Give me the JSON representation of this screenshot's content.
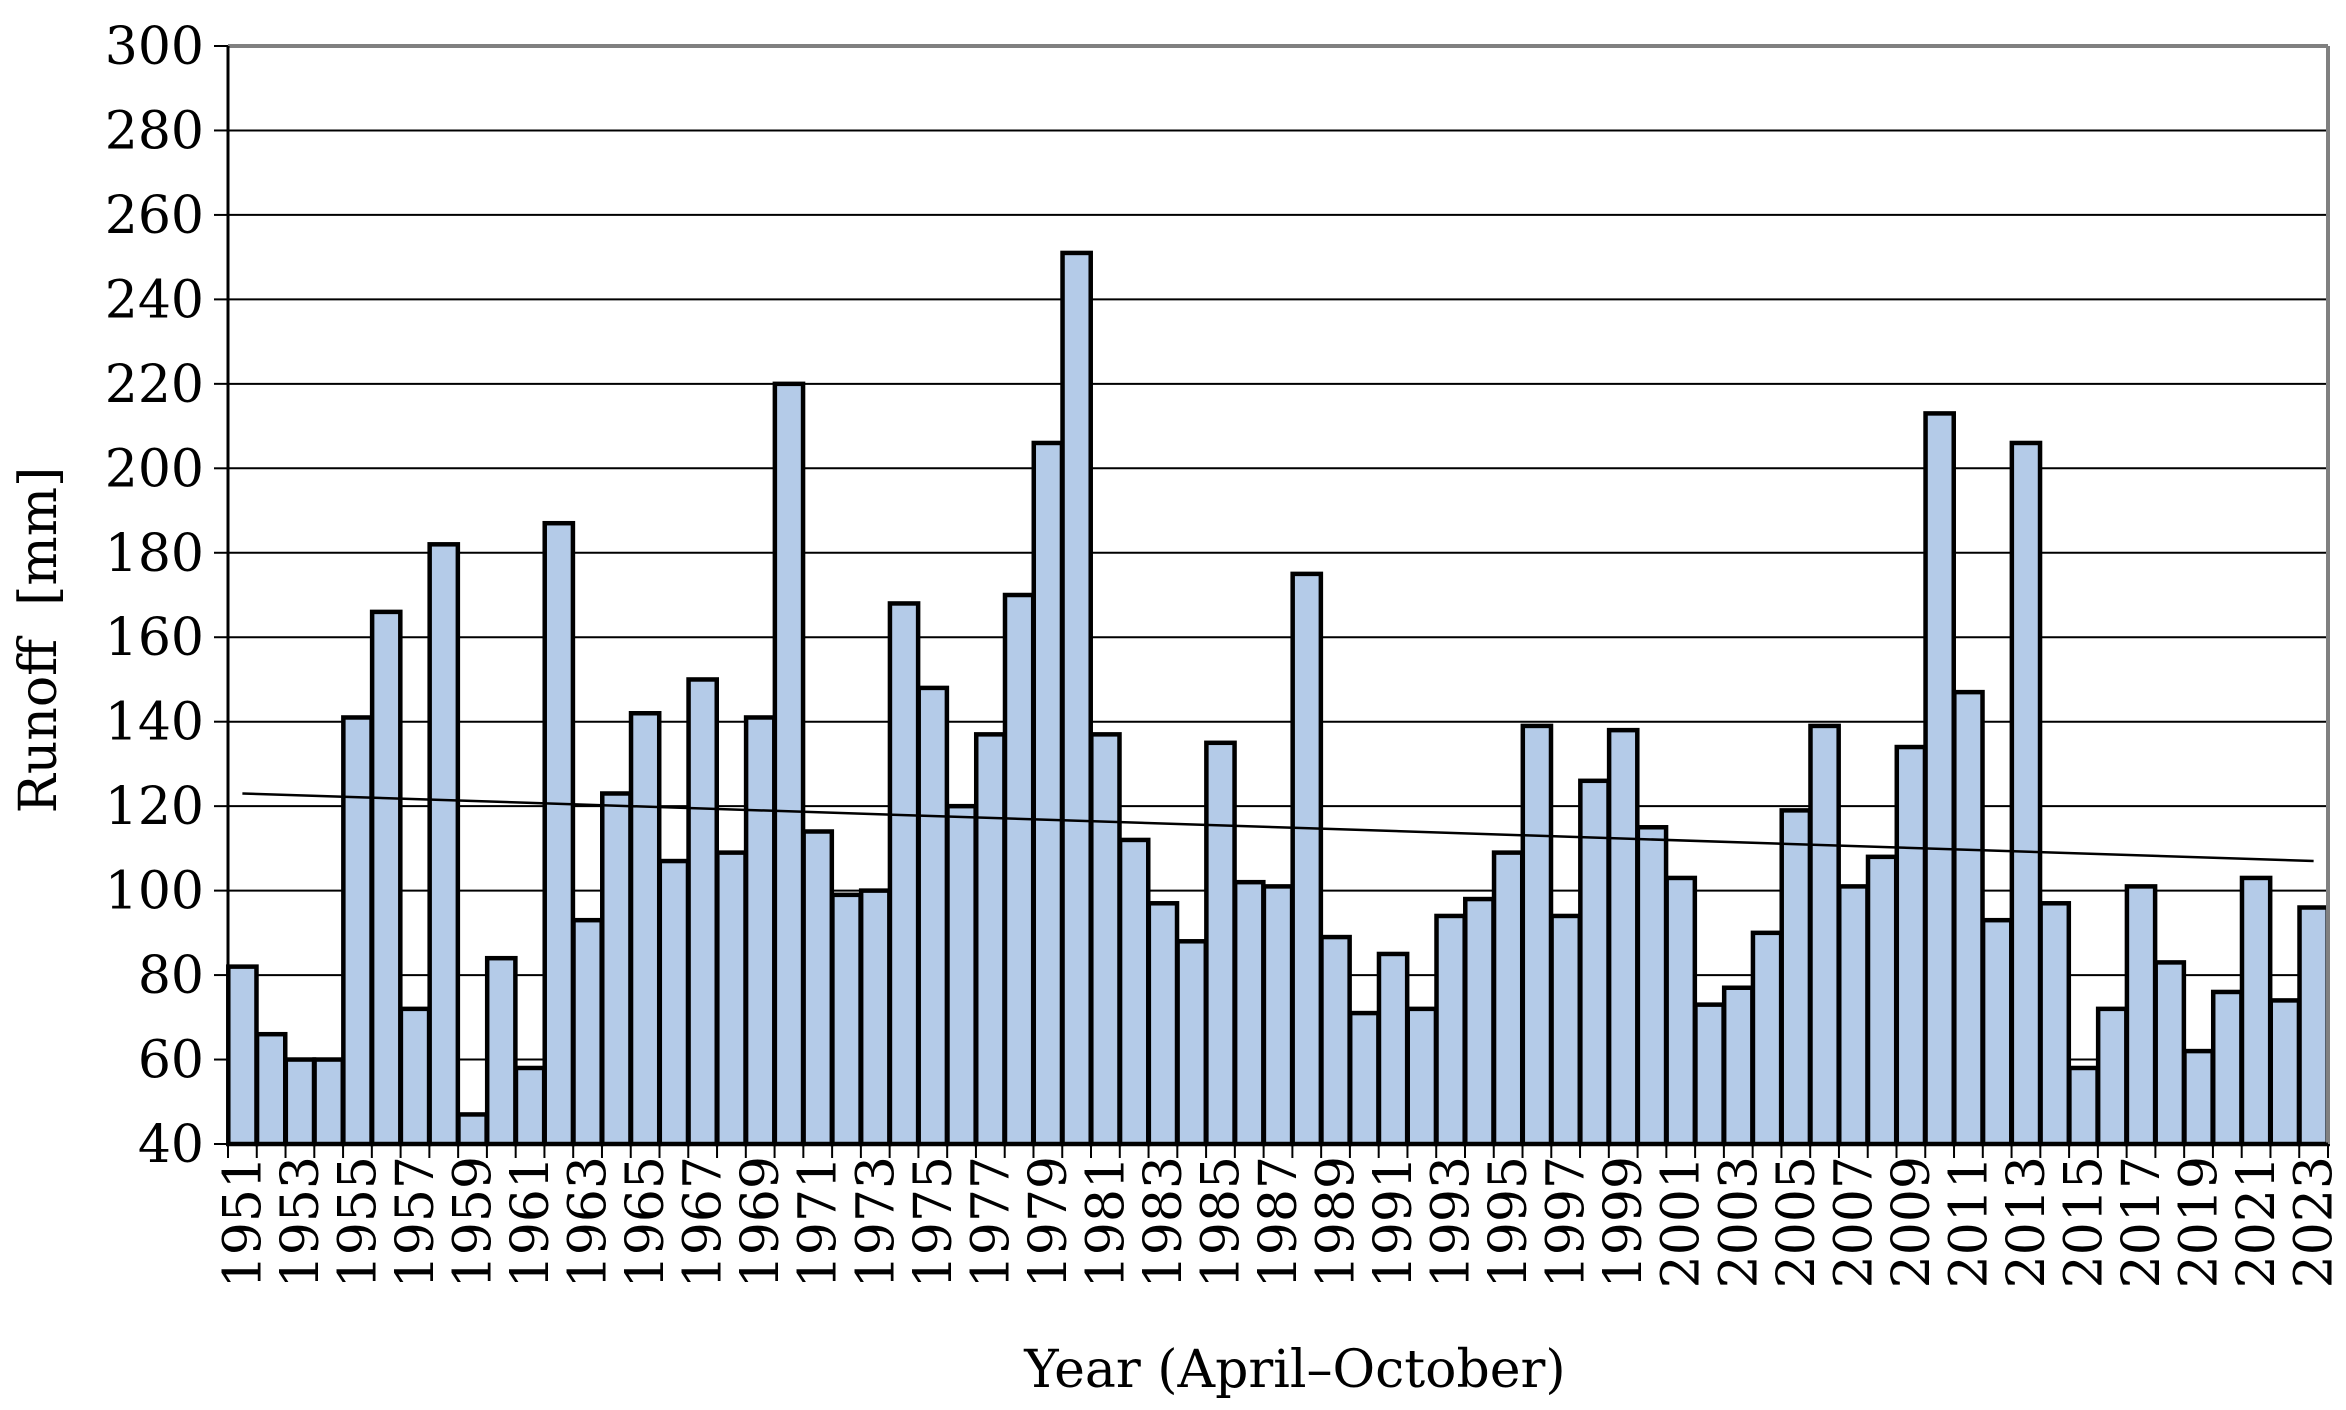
{
  "chart_data": {
    "type": "bar",
    "title": "",
    "xlabel": "Year (April–October)",
    "ylabel": "Runoff  [mm]",
    "ylim": [
      40,
      300
    ],
    "yticks": [
      40,
      60,
      80,
      100,
      120,
      140,
      160,
      180,
      200,
      220,
      240,
      260,
      280,
      300
    ],
    "grid": true,
    "legend": "none",
    "x_tick_labels_shown": [
      "1951",
      "1953",
      "1955",
      "1957",
      "1959",
      "1961",
      "1963",
      "1965",
      "1967",
      "1969",
      "1971",
      "1973",
      "1975",
      "1977",
      "1979",
      "1981",
      "1983",
      "1985",
      "1987",
      "1989",
      "1991",
      "1993",
      "1995",
      "1997",
      "1999",
      "2001",
      "2003",
      "2005",
      "2007",
      "2009",
      "2011",
      "2013",
      "2015",
      "2017",
      "2019",
      "2021",
      "2023"
    ],
    "categories": [
      "1951",
      "1952",
      "1953",
      "1954",
      "1955",
      "1956",
      "1957",
      "1958",
      "1959",
      "1960",
      "1961",
      "1962",
      "1963",
      "1964",
      "1965",
      "1966",
      "1967",
      "1968",
      "1969",
      "1970",
      "1971",
      "1972",
      "1973",
      "1974",
      "1975",
      "1976",
      "1977",
      "1978",
      "1979",
      "1980",
      "1981",
      "1982",
      "1983",
      "1984",
      "1985",
      "1986",
      "1987",
      "1988",
      "1989",
      "1990",
      "1991",
      "1992",
      "1993",
      "1994",
      "1995",
      "1996",
      "1997",
      "1998",
      "1999",
      "2000",
      "2001",
      "2002",
      "2003",
      "2004",
      "2005",
      "2006",
      "2007",
      "2008",
      "2009",
      "2010",
      "2011",
      "2012",
      "2013",
      "2014",
      "2015",
      "2016",
      "2017",
      "2018",
      "2019",
      "2020",
      "2021",
      "2022",
      "2023"
    ],
    "values": [
      82,
      66,
      60,
      60,
      141,
      166,
      72,
      182,
      47,
      84,
      58,
      187,
      93,
      123,
      142,
      107,
      150,
      109,
      141,
      220,
      114,
      99,
      100,
      168,
      148,
      120,
      137,
      170,
      206,
      251,
      137,
      112,
      97,
      88,
      135,
      102,
      101,
      175,
      89,
      71,
      85,
      72,
      94,
      98,
      109,
      139,
      94,
      126,
      138,
      115,
      103,
      73,
      77,
      90,
      119,
      139,
      101,
      108,
      134,
      213,
      147,
      93,
      206,
      97,
      58,
      72,
      101,
      83,
      62,
      76,
      103,
      74,
      96
    ],
    "trendline": {
      "type": "linear",
      "start": 123,
      "end": 107
    },
    "colors": {
      "bar_fill": "#b4cbe8",
      "bar_stroke": "#000000",
      "gridline": "#000000",
      "trendline": "#000000",
      "plot_border": "#808080"
    }
  }
}
